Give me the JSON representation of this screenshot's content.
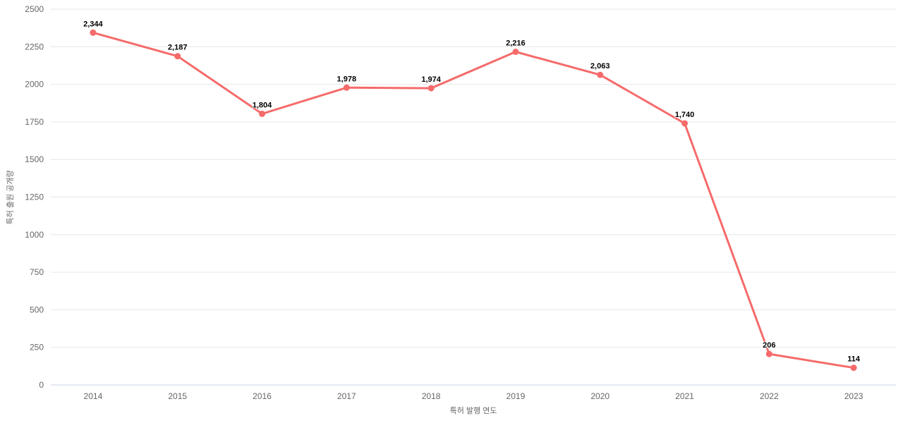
{
  "chart_data": {
    "type": "line",
    "categories": [
      "2014",
      "2015",
      "2016",
      "2017",
      "2018",
      "2019",
      "2020",
      "2021",
      "2022",
      "2023"
    ],
    "series": [
      {
        "values": [
          2344,
          2187,
          1804,
          1978,
          1974,
          2216,
          2063,
          1740,
          206,
          114
        ],
        "data_labels": [
          "2,344",
          "2,187",
          "1,804",
          "1,978",
          "1,974",
          "2,216",
          "2,063",
          "1,740",
          "206",
          "114"
        ]
      }
    ],
    "title": "",
    "xlabel": "특허 발행 연도",
    "ylabel": "특허 출원 공개량",
    "ylim": [
      0,
      2500
    ],
    "ytick_step": 250,
    "ytick_labels": [
      "0",
      "250",
      "500",
      "750",
      "1000",
      "1250",
      "1500",
      "1750",
      "2000",
      "2250",
      "2500"
    ],
    "grid": true,
    "legend": "none",
    "colors": {
      "line": "#f56b6b",
      "marker": "#f56b6b",
      "gridline": "#e6e6e6",
      "baseline": "#ccd6eb",
      "tick_label": "#666666",
      "axis_title": "#666666",
      "data_label": "#000000",
      "background": "#ffffff"
    }
  }
}
